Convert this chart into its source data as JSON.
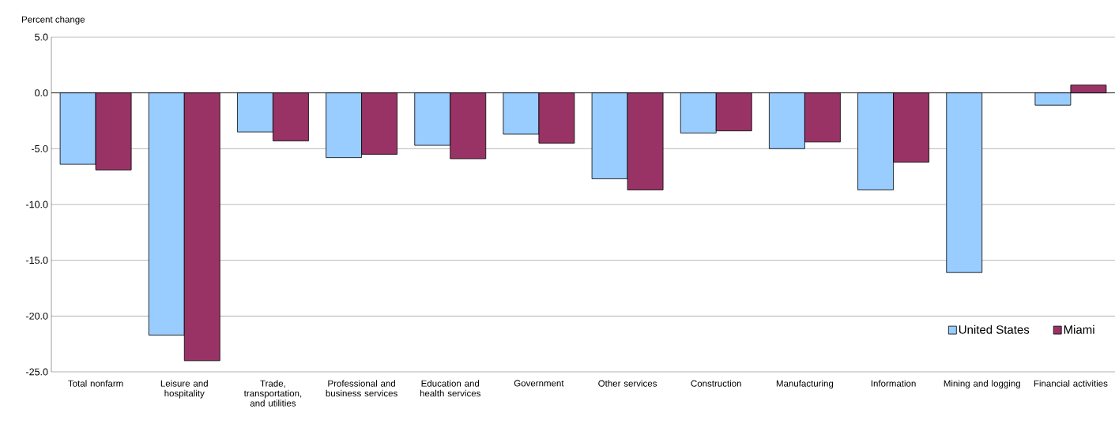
{
  "chart_data": {
    "type": "bar",
    "ylabel": "Percent change",
    "categories": [
      "Total nonfarm",
      "Leisure and hospitality",
      "Trade, transportation, and utilities",
      "Professional and business services",
      "Education and health services",
      "Government",
      "Other services",
      "Construction",
      "Manufacturing",
      "Information",
      "Mining and logging",
      "Financial activities"
    ],
    "series": [
      {
        "name": "United States",
        "color": "#99ccff",
        "values": [
          -6.4,
          -21.7,
          -3.5,
          -5.8,
          -4.7,
          -3.7,
          -7.7,
          -3.6,
          -5.0,
          -8.7,
          -16.1,
          -1.1
        ]
      },
      {
        "name": "Miami",
        "color": "#993366",
        "values": [
          -6.9,
          -24.0,
          -4.3,
          -5.5,
          -5.9,
          -4.5,
          -8.7,
          -3.4,
          -4.4,
          -6.2,
          null,
          0.7
        ]
      }
    ],
    "ylim": [
      -25,
      5
    ],
    "yticks": [
      {
        "value": 5,
        "label": "5.0"
      },
      {
        "value": 0,
        "label": "0.0"
      },
      {
        "value": -5,
        "label": "-5.0"
      },
      {
        "value": -10,
        "label": "-10.0"
      },
      {
        "value": -15,
        "label": "-15.0"
      },
      {
        "value": -20,
        "label": "-20.0"
      },
      {
        "value": -25,
        "label": "-25.0"
      }
    ],
    "grid": "y",
    "legend": "bottom right"
  }
}
